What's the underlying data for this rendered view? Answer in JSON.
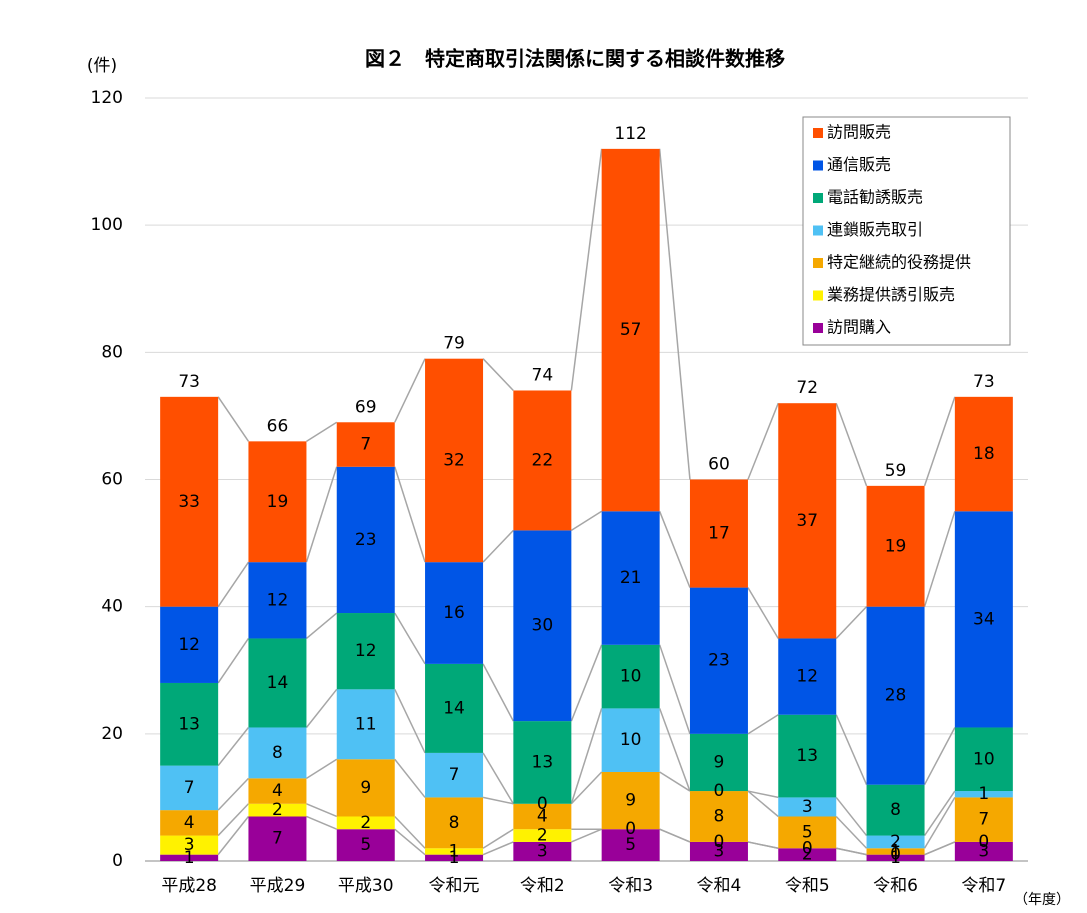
{
  "chart_data": {
    "type": "stacked_bar",
    "title": "図２　特定商取引法関係に関する相談件数推移",
    "y_unit": "(件)",
    "x_unit": "（年度）",
    "categories": [
      "平成28",
      "平成29",
      "平成30",
      "令和元",
      "令和2",
      "令和3",
      "令和4",
      "令和5",
      "令和6",
      "令和7"
    ],
    "series": [
      {
        "name": "訪問販売",
        "color": "#FF4F00",
        "values": [
          33,
          19,
          7,
          32,
          22,
          57,
          17,
          37,
          19,
          18
        ]
      },
      {
        "name": "通信販売",
        "color": "#0055E6",
        "values": [
          12,
          12,
          23,
          16,
          30,
          21,
          23,
          12,
          28,
          34
        ]
      },
      {
        "name": "電話勧誘販売",
        "color": "#00A878",
        "values": [
          13,
          14,
          12,
          14,
          13,
          10,
          9,
          13,
          8,
          10
        ]
      },
      {
        "name": "連鎖販売取引",
        "color": "#4FC1F4",
        "values": [
          7,
          8,
          11,
          7,
          0,
          10,
          0,
          3,
          2,
          1
        ]
      },
      {
        "name": "特定継続的役務提供",
        "color": "#F5A800",
        "values": [
          4,
          4,
          9,
          8,
          4,
          9,
          8,
          5,
          1,
          7
        ]
      },
      {
        "name": "業務提供誘引販売",
        "color": "#FFF200",
        "values": [
          3,
          2,
          2,
          1,
          2,
          0,
          0,
          0,
          0,
          0
        ]
      },
      {
        "name": "訪問購入",
        "color": "#990099",
        "values": [
          1,
          7,
          5,
          1,
          3,
          5,
          3,
          2,
          1,
          3
        ]
      }
    ],
    "totals": [
      73,
      66,
      69,
      79,
      74,
      112,
      60,
      72,
      59,
      73
    ],
    "ylim": [
      0,
      120
    ],
    "yticks": [
      0,
      20,
      40,
      60,
      80,
      100,
      120
    ],
    "grid": true,
    "legend": "upper-right"
  }
}
